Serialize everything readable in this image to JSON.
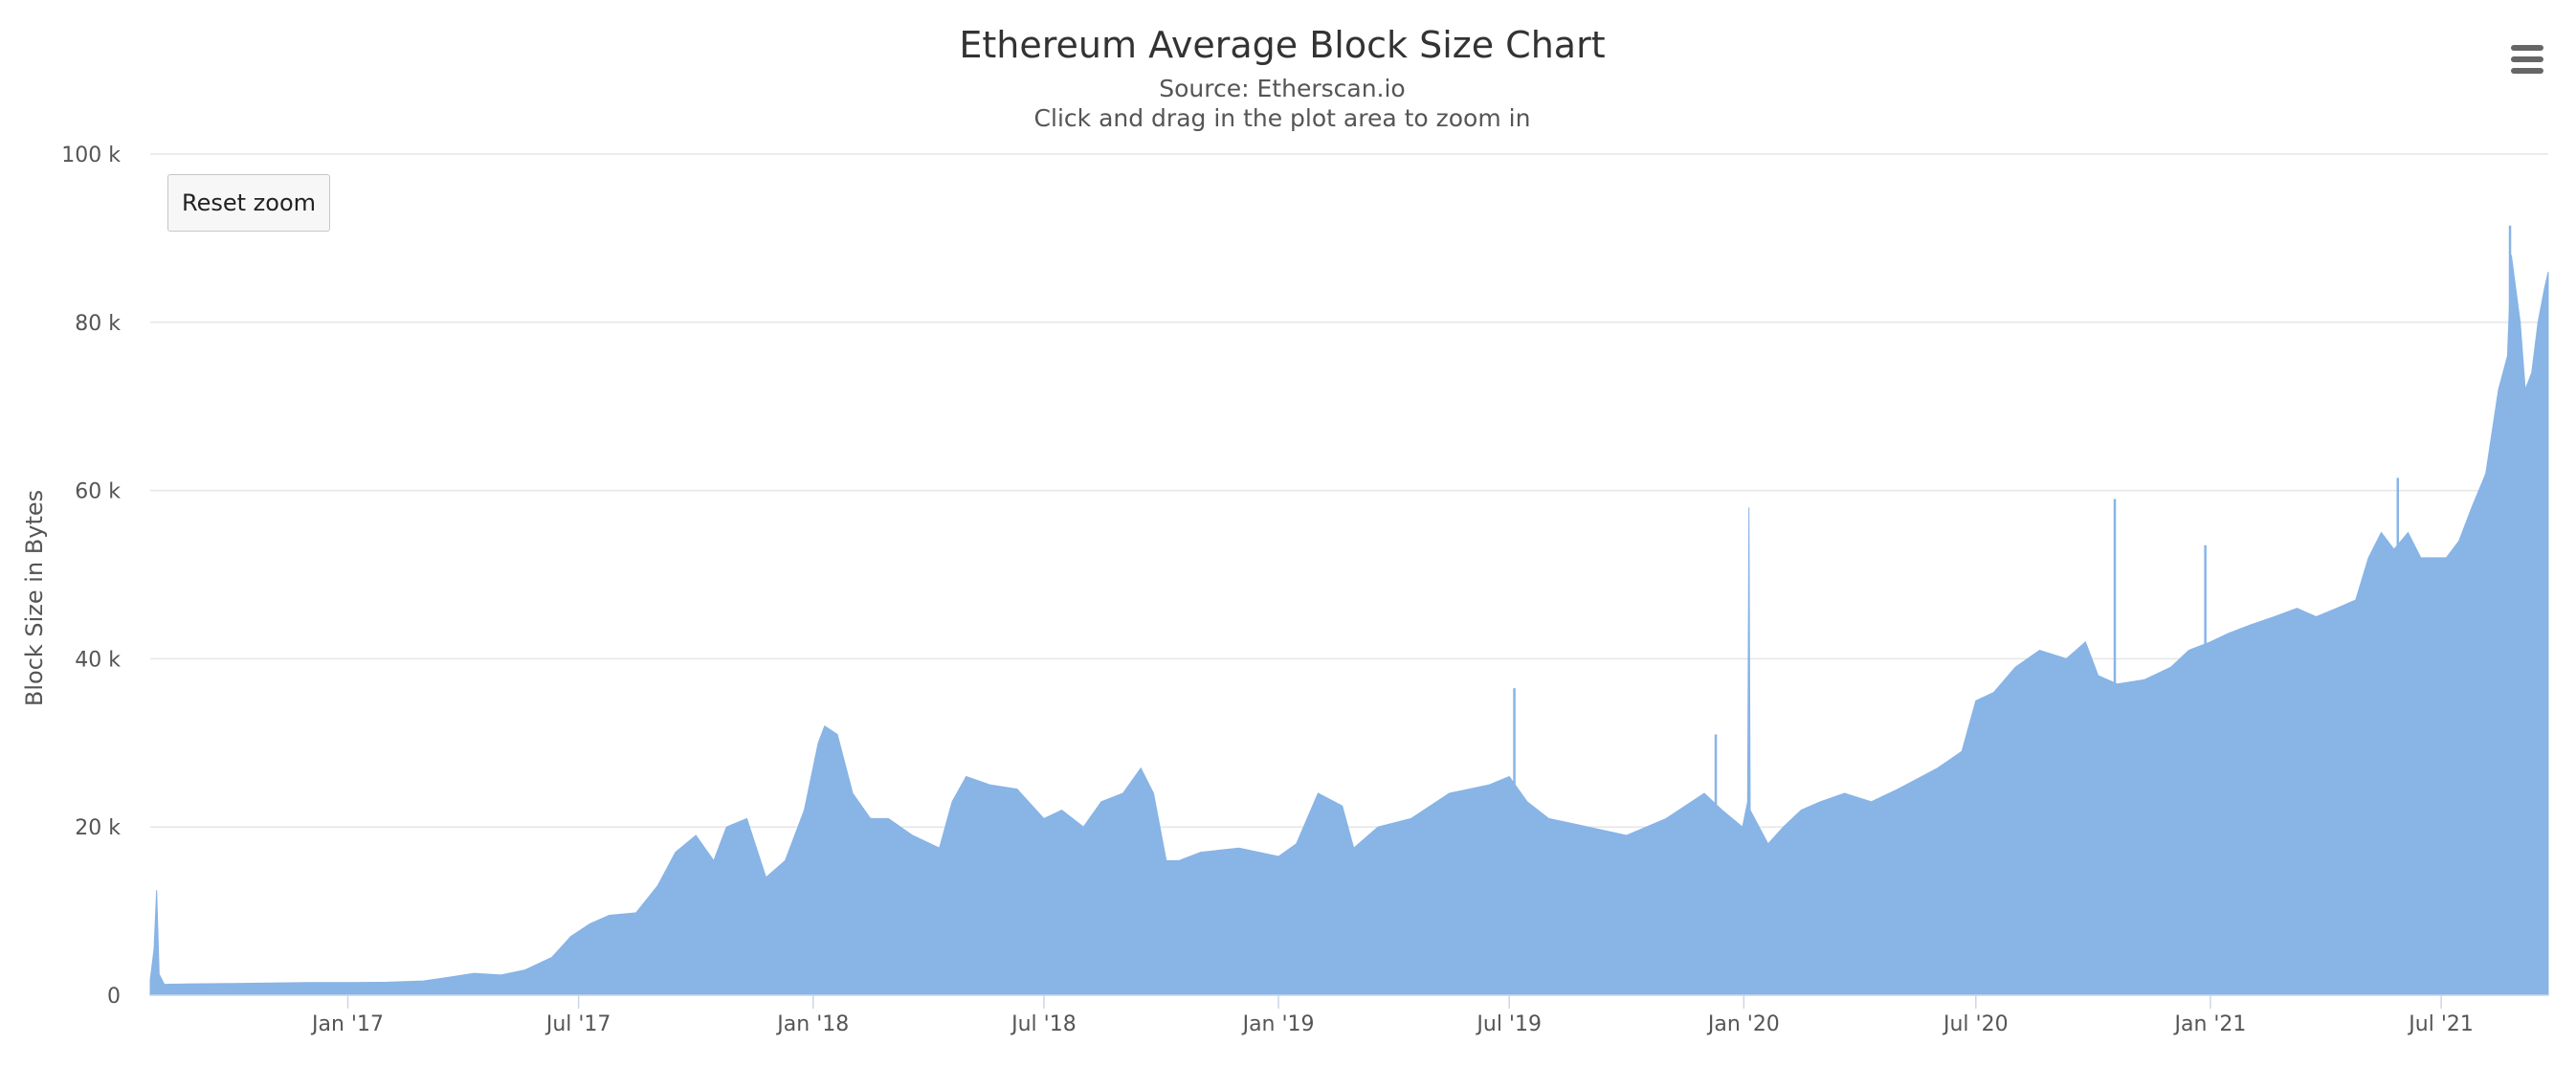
{
  "chart_data": {
    "type": "area",
    "title": "Ethereum Average Block Size Chart",
    "subtitle_lines": [
      "Source: Etherscan.io",
      "Click and drag in the plot area to zoom in"
    ],
    "xlabel": "",
    "ylabel": "Block Size in Bytes",
    "x_range": [
      "2016-07-30",
      "2021-09-23"
    ],
    "ylim": [
      0,
      100000
    ],
    "y_ticks": [
      0,
      20000,
      40000,
      60000,
      80000,
      100000
    ],
    "y_tick_labels": [
      "0",
      "20 k",
      "40 k",
      "60 k",
      "80 k",
      "100 k"
    ],
    "x_ticks": [
      "2017-01-01",
      "2017-07-01",
      "2018-01-01",
      "2018-07-01",
      "2019-01-01",
      "2019-07-01",
      "2020-01-01",
      "2020-07-01",
      "2021-01-01",
      "2021-07-01"
    ],
    "x_tick_labels": [
      "Jan '17",
      "Jul '17",
      "Jan '18",
      "Jul '18",
      "Jan '19",
      "Jul '19",
      "Jan '20",
      "Jul '20",
      "Jan '21",
      "Jul '21"
    ],
    "grid": true,
    "legend": "none",
    "series": [
      {
        "color": "#88b4e6",
        "points": [
          [
            "2016-07-30",
            1800
          ],
          [
            "2016-08-02",
            5500
          ],
          [
            "2016-08-04",
            12500
          ],
          [
            "2016-08-06",
            2500
          ],
          [
            "2016-08-10",
            1300
          ],
          [
            "2016-09-01",
            1350
          ],
          [
            "2016-10-01",
            1400
          ],
          [
            "2016-11-01",
            1450
          ],
          [
            "2016-12-01",
            1500
          ],
          [
            "2017-01-01",
            1500
          ],
          [
            "2017-02-01",
            1550
          ],
          [
            "2017-03-01",
            1700
          ],
          [
            "2017-03-20",
            2100
          ],
          [
            "2017-04-10",
            2600
          ],
          [
            "2017-05-01",
            2400
          ],
          [
            "2017-05-20",
            3000
          ],
          [
            "2017-06-10",
            4500
          ],
          [
            "2017-06-25",
            7000
          ],
          [
            "2017-07-10",
            8500
          ],
          [
            "2017-07-25",
            9500
          ],
          [
            "2017-08-15",
            9800
          ],
          [
            "2017-09-01",
            13000
          ],
          [
            "2017-09-15",
            17000
          ],
          [
            "2017-10-01",
            19000
          ],
          [
            "2017-10-15",
            16000
          ],
          [
            "2017-10-25",
            20000
          ],
          [
            "2017-11-10",
            21000
          ],
          [
            "2017-11-25",
            14000
          ],
          [
            "2017-12-10",
            16000
          ],
          [
            "2017-12-25",
            22000
          ],
          [
            "2018-01-05",
            30000
          ],
          [
            "2018-01-10",
            32000
          ],
          [
            "2018-01-20",
            31000
          ],
          [
            "2018-02-01",
            24000
          ],
          [
            "2018-02-15",
            21000
          ],
          [
            "2018-03-01",
            21000
          ],
          [
            "2018-03-20",
            19000
          ],
          [
            "2018-04-10",
            17500
          ],
          [
            "2018-04-20",
            23000
          ],
          [
            "2018-05-01",
            26000
          ],
          [
            "2018-05-20",
            25000
          ],
          [
            "2018-06-10",
            24500
          ],
          [
            "2018-07-01",
            21000
          ],
          [
            "2018-07-15",
            22000
          ],
          [
            "2018-08-01",
            20000
          ],
          [
            "2018-08-15",
            23000
          ],
          [
            "2018-09-01",
            24000
          ],
          [
            "2018-09-15",
            27000
          ],
          [
            "2018-09-25",
            24000
          ],
          [
            "2018-10-05",
            16000
          ],
          [
            "2018-10-15",
            16000
          ],
          [
            "2018-11-01",
            17000
          ],
          [
            "2018-12-01",
            17500
          ],
          [
            "2019-01-01",
            16500
          ],
          [
            "2019-01-15",
            18000
          ],
          [
            "2019-02-01",
            24000
          ],
          [
            "2019-02-20",
            22500
          ],
          [
            "2019-03-01",
            17500
          ],
          [
            "2019-03-20",
            20000
          ],
          [
            "2019-04-15",
            21000
          ],
          [
            "2019-05-15",
            24000
          ],
          [
            "2019-06-15",
            25000
          ],
          [
            "2019-07-01",
            26000
          ],
          [
            "2019-07-15",
            23000
          ],
          [
            "2019-08-01",
            21000
          ],
          [
            "2019-09-01",
            20000
          ],
          [
            "2019-10-01",
            19000
          ],
          [
            "2019-11-01",
            21000
          ],
          [
            "2019-12-01",
            24000
          ],
          [
            "2019-12-15",
            22000
          ],
          [
            "2019-12-31",
            20000
          ],
          [
            "2020-01-04",
            23000
          ],
          [
            "2020-01-05",
            58000
          ],
          [
            "2020-01-06",
            22000
          ],
          [
            "2020-01-20",
            18000
          ],
          [
            "2020-02-01",
            20000
          ],
          [
            "2020-02-15",
            22000
          ],
          [
            "2020-03-01",
            23000
          ],
          [
            "2020-03-20",
            24000
          ],
          [
            "2020-04-10",
            23000
          ],
          [
            "2020-05-01",
            24500
          ],
          [
            "2020-06-01",
            27000
          ],
          [
            "2020-06-20",
            29000
          ],
          [
            "2020-07-01",
            35000
          ],
          [
            "2020-07-15",
            36000
          ],
          [
            "2020-08-01",
            39000
          ],
          [
            "2020-08-20",
            41000
          ],
          [
            "2020-09-10",
            40000
          ],
          [
            "2020-09-25",
            42000
          ],
          [
            "2020-10-05",
            38000
          ],
          [
            "2020-10-20",
            37000
          ],
          [
            "2020-11-10",
            37500
          ],
          [
            "2020-12-01",
            39000
          ],
          [
            "2020-12-15",
            41000
          ],
          [
            "2021-01-01",
            42000
          ],
          [
            "2021-01-15",
            43000
          ],
          [
            "2021-02-01",
            44000
          ],
          [
            "2021-02-20",
            45000
          ],
          [
            "2021-03-10",
            46000
          ],
          [
            "2021-03-25",
            45000
          ],
          [
            "2021-04-10",
            46000
          ],
          [
            "2021-04-25",
            47000
          ],
          [
            "2021-05-05",
            52000
          ],
          [
            "2021-05-15",
            55000
          ],
          [
            "2021-05-25",
            53000
          ],
          [
            "2021-06-05",
            55000
          ],
          [
            "2021-06-15",
            52000
          ],
          [
            "2021-06-25",
            52000
          ],
          [
            "2021-07-05",
            52000
          ],
          [
            "2021-07-15",
            54000
          ],
          [
            "2021-07-25",
            58000
          ],
          [
            "2021-08-05",
            62000
          ],
          [
            "2021-08-15",
            72000
          ],
          [
            "2021-08-22",
            76000
          ],
          [
            "2021-08-25",
            88000
          ],
          [
            "2021-09-01",
            80000
          ],
          [
            "2021-09-05",
            72000
          ],
          [
            "2021-09-10",
            74000
          ],
          [
            "2021-09-15",
            80000
          ],
          [
            "2021-09-20",
            84000
          ],
          [
            "2021-09-23",
            86000
          ]
        ],
        "spikes": [
          [
            "2019-07-05",
            36500
          ],
          [
            "2019-12-10",
            31000
          ],
          [
            "2020-10-18",
            59000
          ],
          [
            "2020-12-28",
            53500
          ],
          [
            "2021-05-28",
            61500
          ],
          [
            "2021-08-24",
            91500
          ]
        ]
      }
    ]
  },
  "controls": {
    "reset_zoom_label": "Reset zoom"
  }
}
